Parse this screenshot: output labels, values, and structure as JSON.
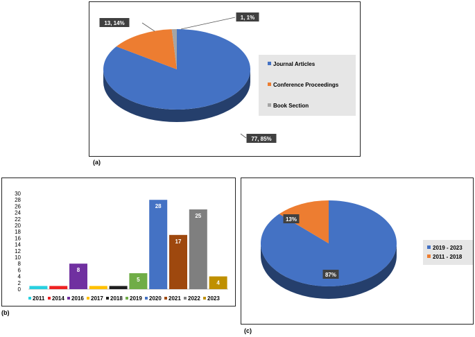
{
  "chart_data": [
    {
      "type": "pie",
      "panel_tag": "(a)",
      "categories": [
        "Journal Articles",
        "Conference Proceedings",
        "Book Section"
      ],
      "values": [
        77,
        13,
        1
      ],
      "percents": [
        85,
        14,
        1
      ],
      "labels": [
        "77, 85%",
        "13, 14%",
        "1, 1%"
      ],
      "colors": [
        "#4472c4",
        "#ed7d31",
        "#a5a5a5"
      ],
      "legend_position": "right"
    },
    {
      "type": "bar",
      "panel_tag": "(b)",
      "categories": [
        "2011",
        "2014",
        "2016",
        "2017",
        "2018",
        "2019",
        "2020",
        "2021",
        "2022",
        "2023"
      ],
      "values": [
        1,
        1,
        8,
        1,
        1,
        5,
        28,
        17,
        25,
        4
      ],
      "data_labels": [
        "",
        "",
        "8",
        "",
        "",
        "5",
        "28",
        "17",
        "25",
        "4"
      ],
      "colors": [
        "#29d0e0",
        "#ee2222",
        "#7030a0",
        "#ffc000",
        "#1f1f1f",
        "#70ad47",
        "#4472c4",
        "#9e480e",
        "#7f7f7f",
        "#bf9000"
      ],
      "ylim": [
        0,
        30
      ],
      "yticks": [
        "0",
        "2",
        "4",
        "6",
        "8",
        "10",
        "12",
        "14",
        "16",
        "18",
        "20",
        "22",
        "24",
        "26",
        "28",
        "30"
      ],
      "legend_position": "bottom"
    },
    {
      "type": "pie",
      "panel_tag": "(c)",
      "categories": [
        "2019 - 2023",
        "2011 - 2018"
      ],
      "values": [
        87,
        13
      ],
      "labels": [
        "87%",
        "13%"
      ],
      "colors": [
        "#4472c4",
        "#ed7d31"
      ],
      "legend_position": "right"
    }
  ]
}
